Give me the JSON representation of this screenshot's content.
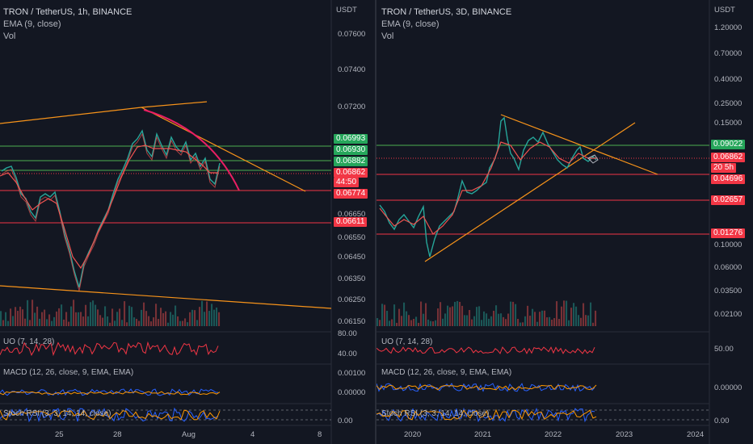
{
  "left": {
    "legend": {
      "title": "TRON / TetherUS, 1h, BINANCE",
      "ema": "EMA (9, close)",
      "vol": "Vol"
    },
    "currency": "USDT",
    "price_axis": [
      "0.07600",
      "0.07400",
      "0.07200",
      "0.06650",
      "0.06550",
      "0.06450",
      "0.06350",
      "0.06250",
      "0.06150"
    ],
    "tags": [
      {
        "text": "0.06993",
        "color": "#26a65b"
      },
      {
        "text": "0.06930",
        "color": "#26a65b"
      },
      {
        "text": "0.06882",
        "color": "#26a65b"
      },
      {
        "text": "0.06862",
        "color": "#f23645"
      },
      {
        "text": "44:50",
        "color": "#f23645"
      },
      {
        "text": "0.06774",
        "color": "#f23645"
      },
      {
        "text": "0.06611",
        "color": "#f23645"
      }
    ],
    "uo_label": "UO (7, 14, 28)",
    "uo_axis": [
      "80.00",
      "40.00"
    ],
    "macd_label": "MACD (12, 26, close, 9, EMA, EMA)",
    "macd_axis": [
      "0.00100",
      "0.00000"
    ],
    "stoch_label": "Stoch RSI (3, 3, 14, 14, close)",
    "stoch_axis": [
      "0.00"
    ],
    "time_axis": [
      "25",
      "28",
      "Aug",
      "4",
      "8"
    ]
  },
  "right": {
    "legend": {
      "title": "TRON / TetherUS, 3D, BINANCE",
      "ema": "EMA (9, close)",
      "vol": "Vol"
    },
    "currency": "USDT",
    "price_axis": [
      "1.20000",
      "0.70000",
      "0.40000",
      "0.25000",
      "0.15000",
      "0.10000",
      "0.06000",
      "0.03500",
      "0.02100"
    ],
    "tags": [
      {
        "text": "0.09022",
        "color": "#26a65b"
      },
      {
        "text": "0.06862",
        "color": "#f23645"
      },
      {
        "text": "20 5h",
        "color": "#f23645"
      },
      {
        "text": "0.04696",
        "color": "#f23645"
      },
      {
        "text": "0.02657",
        "color": "#f23645"
      },
      {
        "text": "0.01276",
        "color": "#f23645"
      }
    ],
    "uo_label": "UO (7, 14, 28)",
    "uo_axis": [
      "50.00"
    ],
    "macd_label": "MACD (12, 26, close, 9, EMA, EMA)",
    "macd_axis": [
      "0.00000"
    ],
    "stoch_label": "Stoch RSI (3, 3, 14, 14, close)",
    "stoch_axis": [
      "0.00"
    ],
    "time_axis": [
      "2020",
      "2021",
      "2022",
      "2023",
      "2024"
    ]
  },
  "colors": {
    "bg": "#131722",
    "up": "#26a69a",
    "down": "#ef5350",
    "orange": "#f7931a",
    "green_line": "#4caf50",
    "red_line": "#f23645",
    "pink": "#e91e63"
  }
}
